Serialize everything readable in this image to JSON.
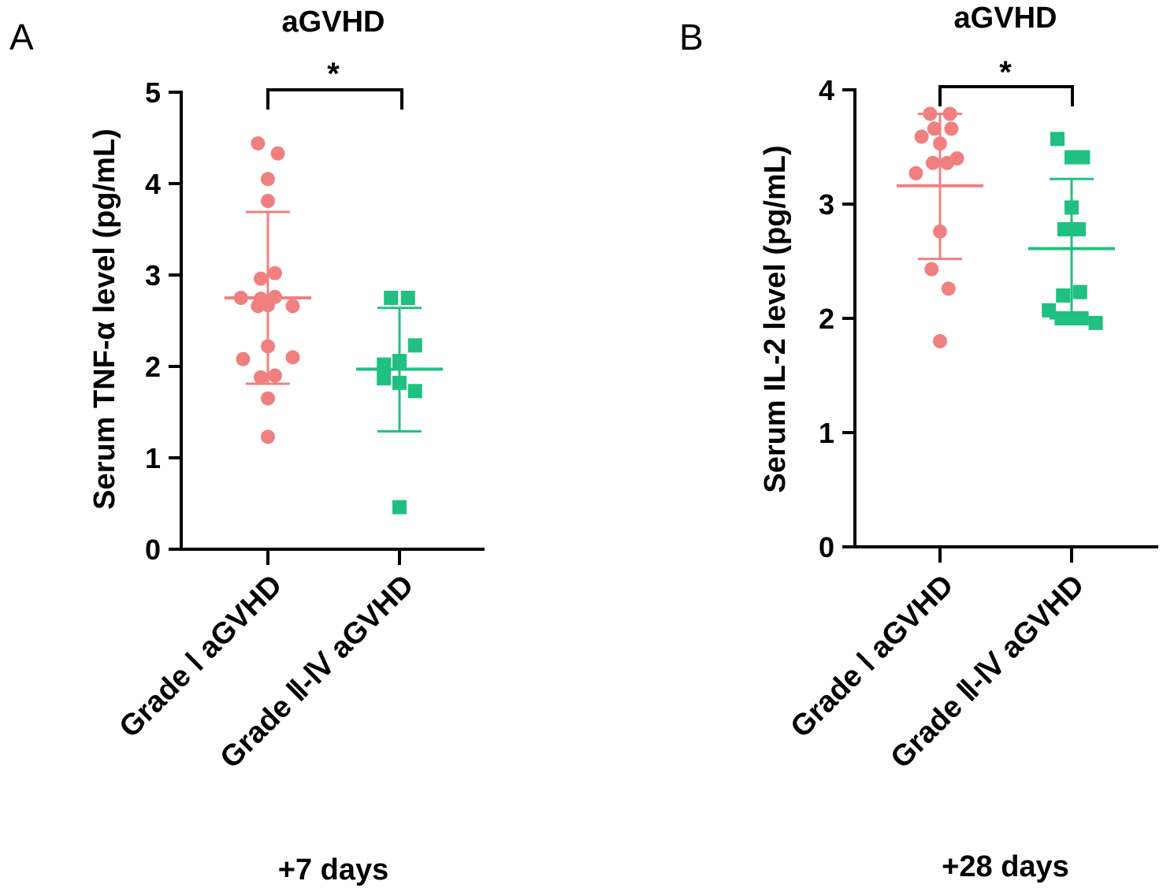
{
  "chart_data": [
    {
      "panel": "A",
      "type": "scatter",
      "title": "aGVHD",
      "ylabel": "Serum TNF-α level (pg/mL)",
      "xlabel": "+7 days",
      "ylim": [
        0,
        5
      ],
      "yticks": [
        0,
        1,
        2,
        3,
        4,
        5
      ],
      "significance": "*",
      "categories": [
        "Grade Ⅰ aGVHD",
        "Grade Ⅱ-Ⅳ aGVHD"
      ],
      "series": [
        {
          "name": "Grade Ⅰ aGVHD",
          "marker": "circle",
          "color": "#f08080",
          "mean": 2.75,
          "sd_low": 1.81,
          "sd_high": 3.69,
          "points": [
            {
              "dx": -0.14,
              "y": 4.44
            },
            {
              "dx": 0.14,
              "y": 4.33
            },
            {
              "dx": 0.0,
              "y": 4.05
            },
            {
              "dx": 0.0,
              "y": 3.81
            },
            {
              "dx": -0.1,
              "y": 2.96
            },
            {
              "dx": 0.1,
              "y": 3.02
            },
            {
              "dx": -0.38,
              "y": 2.75
            },
            {
              "dx": -0.1,
              "y": 2.74
            },
            {
              "dx": 0.1,
              "y": 2.76
            },
            {
              "dx": -0.14,
              "y": 2.66
            },
            {
              "dx": 0.0,
              "y": 2.67
            },
            {
              "dx": 0.35,
              "y": 2.66
            },
            {
              "dx": 0.0,
              "y": 2.22
            },
            {
              "dx": -0.35,
              "y": 2.08
            },
            {
              "dx": 0.35,
              "y": 2.1
            },
            {
              "dx": -0.1,
              "y": 1.88
            },
            {
              "dx": 0.1,
              "y": 1.9
            },
            {
              "dx": 0.0,
              "y": 1.65
            },
            {
              "dx": 0.0,
              "y": 1.23
            }
          ]
        },
        {
          "name": "Grade Ⅱ-Ⅳ aGVHD",
          "marker": "square",
          "color": "#20c080",
          "mean": 1.97,
          "sd_low": 1.29,
          "sd_high": 2.64,
          "points": [
            {
              "dx": -0.12,
              "y": 2.75
            },
            {
              "dx": 0.12,
              "y": 2.75
            },
            {
              "dx": 0.22,
              "y": 2.23
            },
            {
              "dx": -0.22,
              "y": 2.02
            },
            {
              "dx": 0.0,
              "y": 2.06
            },
            {
              "dx": -0.22,
              "y": 1.87
            },
            {
              "dx": 0.0,
              "y": 1.82
            },
            {
              "dx": 0.22,
              "y": 1.73
            },
            {
              "dx": 0.0,
              "y": 0.46
            }
          ]
        }
      ]
    },
    {
      "panel": "B",
      "type": "scatter",
      "title": "aGVHD",
      "ylabel": "Serum IL-2 level (pg/mL)",
      "xlabel": "+28 days",
      "ylim": [
        0,
        4
      ],
      "yticks": [
        0,
        1,
        2,
        3,
        4
      ],
      "significance": "*",
      "categories": [
        "Grade Ⅰ aGVHD",
        "Grade Ⅱ-Ⅳ aGVHD"
      ],
      "series": [
        {
          "name": "Grade Ⅰ aGVHD",
          "marker": "circle",
          "color": "#f08080",
          "mean": 3.16,
          "sd_low": 2.52,
          "sd_high": 3.79,
          "points": [
            {
              "dx": -0.14,
              "y": 3.79
            },
            {
              "dx": 0.14,
              "y": 3.79
            },
            {
              "dx": 0.16,
              "y": 3.66
            },
            {
              "dx": -0.08,
              "y": 3.66
            },
            {
              "dx": -0.26,
              "y": 3.59
            },
            {
              "dx": 0.0,
              "y": 3.53
            },
            {
              "dx": 0.24,
              "y": 3.4
            },
            {
              "dx": -0.1,
              "y": 3.36
            },
            {
              "dx": 0.1,
              "y": 3.36
            },
            {
              "dx": -0.34,
              "y": 3.27
            },
            {
              "dx": 0.0,
              "y": 2.76
            },
            {
              "dx": -0.12,
              "y": 2.43
            },
            {
              "dx": 0.12,
              "y": 2.26
            },
            {
              "dx": 0.0,
              "y": 1.8
            }
          ]
        },
        {
          "name": "Grade Ⅱ-Ⅳ aGVHD",
          "marker": "square",
          "color": "#20c080",
          "mean": 2.61,
          "sd_low": 2.0,
          "sd_high": 3.22,
          "points": [
            {
              "dx": -0.2,
              "y": 3.57
            },
            {
              "dx": 0.0,
              "y": 3.41
            },
            {
              "dx": 0.16,
              "y": 3.41
            },
            {
              "dx": 0.0,
              "y": 2.97
            },
            {
              "dx": -0.1,
              "y": 2.78
            },
            {
              "dx": 0.1,
              "y": 2.78
            },
            {
              "dx": -0.12,
              "y": 2.2
            },
            {
              "dx": 0.12,
              "y": 2.23
            },
            {
              "dx": -0.32,
              "y": 2.07
            },
            {
              "dx": -0.14,
              "y": 2.0
            },
            {
              "dx": 0.0,
              "y": 2.0
            },
            {
              "dx": 0.14,
              "y": 2.0
            },
            {
              "dx": 0.34,
              "y": 1.96
            }
          ]
        }
      ]
    }
  ]
}
